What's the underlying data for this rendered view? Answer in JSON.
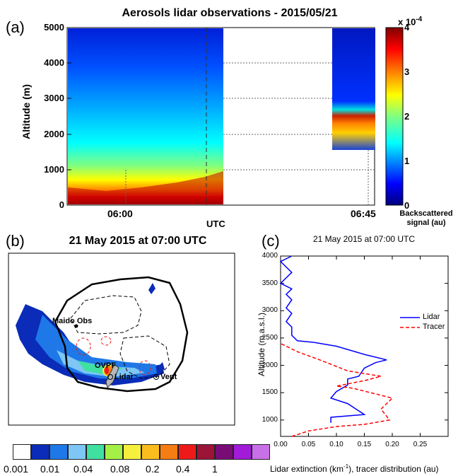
{
  "panel_a": {
    "label": "(a)",
    "title": "Aerosols lidar observations - 2015/05/21",
    "ylabel": "Altitude (m)",
    "yticks": [
      "5000",
      "4000",
      "3000",
      "2000",
      "1000",
      "0"
    ],
    "xticks": [
      "06:00",
      "06:45"
    ],
    "xlabel": "UTC",
    "colorbar": {
      "exponent": "x 10",
      "exponent_power": "-4",
      "ticks": [
        "4",
        "3",
        "2",
        "1",
        "0"
      ],
      "label_line1": "Backscattered",
      "label_line2": "signal (au)",
      "colors": [
        "#00007f",
        "#0000ff",
        "#0080ff",
        "#00ffff",
        "#80ff80",
        "#ffff00",
        "#ff8000",
        "#ff0000",
        "#800000"
      ]
    }
  },
  "panel_b": {
    "label": "(b)",
    "title": "21 May 2015 at 07:00 UTC",
    "places": {
      "maido": "Maido Obs",
      "ovpf": "OVPF",
      "lidar": "Lidar",
      "vent": "Vent"
    },
    "scale": {
      "colors": [
        "#ffffff",
        "#0a2cb8",
        "#1f78e8",
        "#7ec6f5",
        "#3fe0a0",
        "#a5f046",
        "#f5f03c",
        "#fbbd1e",
        "#f57d14",
        "#ee1a1a",
        "#9c1438",
        "#7a0c78",
        "#a21bd8",
        "#c870e8"
      ],
      "labels": [
        "0.001",
        "0.01",
        "0.04",
        "0.08",
        "0.2",
        "0.4",
        "1"
      ]
    }
  },
  "panel_c": {
    "label": "(c)",
    "title": "21 May 2015 at 07:00 UTC",
    "ylabel": "Altitude (m a.s.l.)",
    "xlabel_main": "Lidar extinction (km",
    "xlabel_sup": "-1",
    "xlabel_rest": "),  tracer distribution (au)",
    "yticks": [
      "4000",
      "3500",
      "3000",
      "2500",
      "2000",
      "1500",
      "1000"
    ],
    "xticks": [
      "0.00",
      "0.05",
      "0.10",
      "0.15",
      "0.20",
      "0.25"
    ],
    "legend": [
      "Lidar",
      "Tracer"
    ]
  },
  "chart_data": {
    "type": "line",
    "title": "21 May 2015 at 07:00 UTC",
    "xlabel": "Lidar extinction (km-1),  tracer distribution (au)",
    "ylabel": "Altitude (m a.s.l.)",
    "xlim": [
      0,
      0.3
    ],
    "ylim": [
      700,
      4000
    ],
    "legend": "right",
    "series": [
      {
        "name": "Lidar",
        "color": "#0000ff",
        "points": [
          [
            0.09,
            950
          ],
          [
            0.09,
            1050
          ],
          [
            0.15,
            1100
          ],
          [
            0.12,
            1300
          ],
          [
            0.09,
            1400
          ],
          [
            0.1,
            1520
          ],
          [
            0.12,
            1640
          ],
          [
            0.12,
            1750
          ],
          [
            0.14,
            1800
          ],
          [
            0.15,
            1950
          ],
          [
            0.17,
            2050
          ],
          [
            0.19,
            2100
          ],
          [
            0.15,
            2200
          ],
          [
            0.1,
            2350
          ],
          [
            0.06,
            2420
          ],
          [
            0.03,
            2450
          ],
          [
            0.02,
            2550
          ],
          [
            0.02,
            2700
          ],
          [
            0.01,
            2800
          ],
          [
            0.02,
            2950
          ],
          [
            0.01,
            3050
          ],
          [
            0.02,
            3200
          ],
          [
            0.01,
            3300
          ],
          [
            0.02,
            3400
          ],
          [
            0.0,
            3500
          ],
          [
            0.01,
            3600
          ],
          [
            0.02,
            3700
          ],
          [
            0.01,
            3800
          ],
          [
            0.0,
            3900
          ],
          [
            0.02,
            4000
          ]
        ]
      },
      {
        "name": "Tracer",
        "color": "#ff0000",
        "points": [
          [
            0.02,
            700
          ],
          [
            0.05,
            800
          ],
          [
            0.1,
            880
          ],
          [
            0.15,
            920
          ],
          [
            0.195,
            1000
          ],
          [
            0.18,
            1200
          ],
          [
            0.2,
            1400
          ],
          [
            0.13,
            1580
          ],
          [
            0.1,
            1620
          ],
          [
            0.15,
            1720
          ],
          [
            0.18,
            1800
          ],
          [
            0.12,
            1900
          ],
          [
            0.07,
            2100
          ],
          [
            0.03,
            2250
          ],
          [
            0.0,
            2400
          ]
        ]
      }
    ]
  }
}
